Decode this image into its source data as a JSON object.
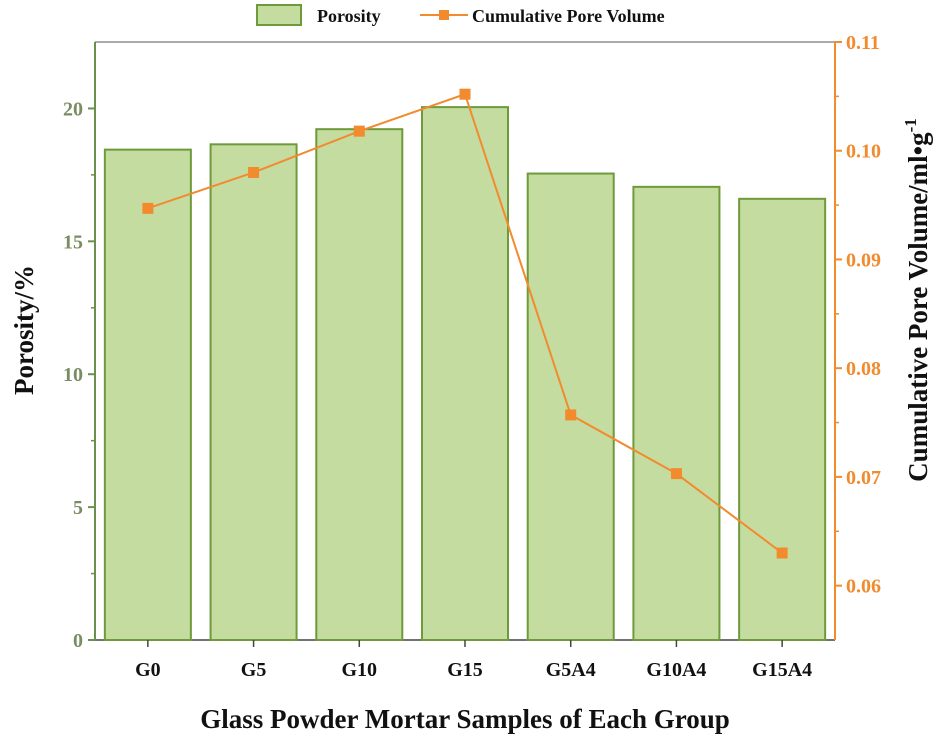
{
  "chart_data": {
    "type": "bar+line",
    "categories": [
      "G0",
      "G5",
      "G10",
      "G15",
      "G5A4",
      "G10A4",
      "G15A4"
    ],
    "series": [
      {
        "name": "Porosity",
        "kind": "bar",
        "axis": "left",
        "values": [
          18.45,
          18.65,
          19.22,
          20.05,
          17.55,
          17.05,
          16.6
        ]
      },
      {
        "name": "Cumulative Pore Volume",
        "kind": "line",
        "axis": "right",
        "values": [
          0.0947,
          0.098,
          0.1018,
          0.1052,
          0.0757,
          0.0703,
          0.063
        ]
      }
    ],
    "xlabel": "Glass Powder Mortar Samples of Each Group",
    "ylabel_left": "Porosity/%",
    "ylabel_right": {
      "base": "Cumulative Pore Volume/ml•g",
      "superscript": "-1"
    },
    "ylim_left": [
      0,
      22.5
    ],
    "ylim_right": [
      0.055,
      0.11
    ],
    "yticks_left": [
      "0",
      "5",
      "10",
      "15",
      "20"
    ],
    "yticks_right": [
      "0.06",
      "0.07",
      "0.08",
      "0.09",
      "0.10",
      "0.11"
    ],
    "legend": [
      {
        "label": "Porosity",
        "symbol": "bar"
      },
      {
        "label": "Cumulative Pore Volume",
        "symbol": "line-square"
      }
    ],
    "legend_position": "top",
    "colors": {
      "bar_fill": "#c5dca1",
      "bar_stroke": "#6e9a3a",
      "left_axis": "#6b8f4e",
      "left_tick_text": "#7a8c62",
      "line": "#f28a2e",
      "right_axis": "#f28a2e",
      "text_dark": "#111111"
    }
  }
}
